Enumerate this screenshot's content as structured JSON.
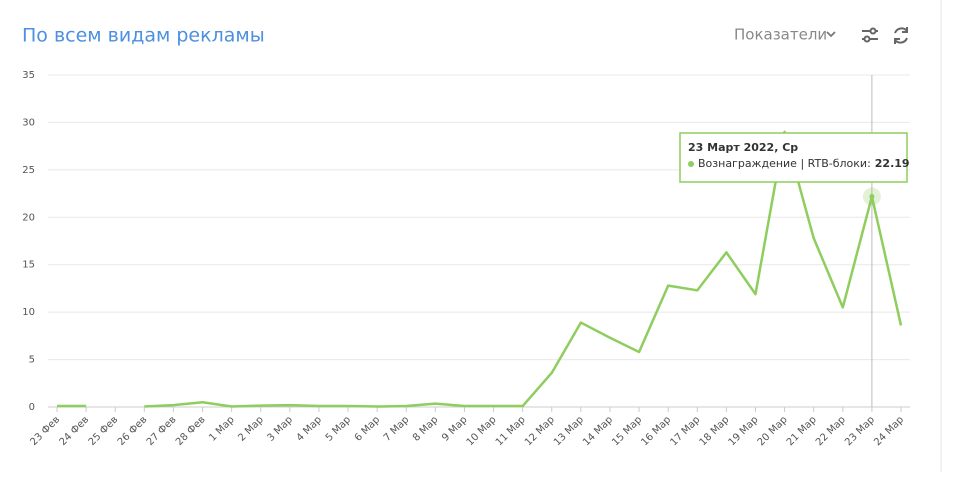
{
  "header": {
    "title": "По всем видам рекламы",
    "metrics_button": "Показатели"
  },
  "chart_data": {
    "type": "line",
    "categories": [
      "23 Фев",
      "24 Фев",
      "25 Фев",
      "26 Фев",
      "27 Фев",
      "28 Фев",
      "1 Мар",
      "2 Мар",
      "3 Мар",
      "4 Мар",
      "5 Мар",
      "6 Мар",
      "7 Мар",
      "8 Мар",
      "9 Мар",
      "10 Мар",
      "11 Мар",
      "12 Мар",
      "13 Мар",
      "14 Мар",
      "15 Мар",
      "16 Мар",
      "17 Мар",
      "18 Мар",
      "19 Мар",
      "20 Мар",
      "21 Мар",
      "22 Мар",
      "23 Мар",
      "24 Мар"
    ],
    "series": [
      {
        "color": "#8fcd5e",
        "values": [
          0.1,
          0.1,
          null,
          0.05,
          0.2,
          0.5,
          0.05,
          0.15,
          0.2,
          0.1,
          0.1,
          0.05,
          0.1,
          0.35,
          0.1,
          0.1,
          0.1,
          3.6,
          8.9,
          7.3,
          5.8,
          12.8,
          12.3,
          16.3,
          11.9,
          29,
          17.8,
          10.5,
          22.19,
          8.6
        ]
      }
    ],
    "ylim": [
      0,
      35
    ],
    "yticks": [
      0,
      5,
      10,
      15,
      20,
      25,
      30,
      35
    ],
    "grid": true,
    "tooltip": {
      "title": "23 Март 2022, Ср",
      "label": "Вознаграждение | RTB-блоки:"
    }
  }
}
